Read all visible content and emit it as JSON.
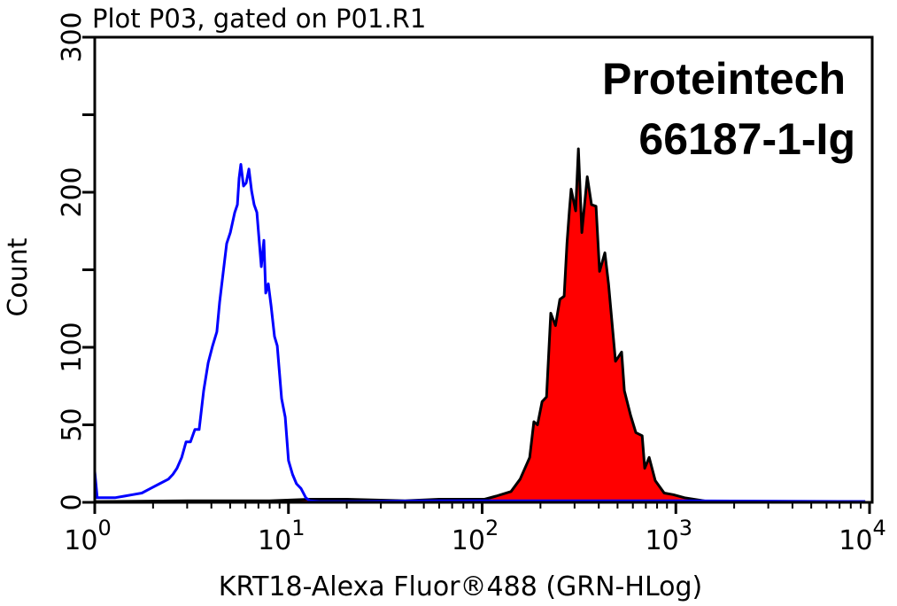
{
  "chart_data": {
    "type": "area",
    "title": "Plot P03, gated on P01.R1",
    "xlabel": "KRT18-Alexa Fluor®488 (GRN-HLog)",
    "ylabel": "Count",
    "x_scale": "log",
    "xlim": [
      1,
      10000
    ],
    "ylim": [
      0,
      300
    ],
    "x_ticks": [
      1,
      10,
      100,
      1000,
      10000
    ],
    "x_tick_labels": [
      {
        "base": "10",
        "exp": "0"
      },
      {
        "base": "10",
        "exp": "1"
      },
      {
        "base": "10",
        "exp": "2"
      },
      {
        "base": "10",
        "exp": "3"
      },
      {
        "base": "10",
        "exp": "4"
      }
    ],
    "y_ticks": [
      0,
      50,
      100,
      150,
      200,
      250,
      300
    ],
    "y_tick_labels": [
      "0",
      "50",
      "100",
      "",
      "200",
      "",
      "300"
    ],
    "grid": false,
    "annotations": [
      "Proteintech",
      "66187-1-Ig"
    ],
    "series": [
      {
        "style": "outline",
        "color": "#0000ff",
        "x": [
          1.0,
          1.03,
          1.27,
          1.42,
          1.57,
          1.75,
          1.94,
          2.16,
          2.4,
          2.53,
          2.66,
          2.81,
          2.96,
          3.12,
          3.29,
          3.46,
          3.65,
          3.85,
          4.06,
          4.27,
          4.41,
          4.61,
          4.8,
          5.01,
          5.28,
          5.45,
          5.56,
          5.68,
          5.86,
          6.05,
          6.25,
          6.45,
          6.65,
          6.87,
          7.24,
          7.47,
          7.63,
          7.87,
          8.13,
          8.47,
          8.75,
          9.22,
          9.62,
          10.0,
          10.5,
          11.0,
          11.6,
          12.3,
          12.9,
          14.4,
          21.9,
          50,
          200,
          1000,
          9500
        ],
        "y": [
          20,
          3,
          3,
          4,
          5,
          6,
          9,
          12,
          15,
          18,
          22,
          29,
          39,
          39,
          47,
          47,
          72,
          90,
          101,
          110,
          129,
          149,
          167,
          174,
          187,
          192,
          209,
          218,
          204,
          206,
          215,
          201,
          192,
          187,
          152,
          169,
          135,
          141,
          127,
          107,
          101,
          67,
          55,
          27,
          18,
          12,
          9,
          3,
          1,
          0.5,
          0.5,
          1,
          1,
          1,
          0.5
        ]
      },
      {
        "style": "filled",
        "color": "#ff0000",
        "edge_color": "#000000",
        "x": [
          1.0,
          3,
          8,
          13,
          20,
          40,
          60,
          90,
          103,
          118,
          141,
          157,
          176,
          185,
          193,
          204,
          215,
          226,
          239,
          252,
          265,
          274,
          282,
          288,
          304,
          314,
          327,
          349,
          367,
          387,
          404,
          430,
          449,
          488,
          525,
          542,
          584,
          622,
          670,
          691,
          728,
          783,
          871,
          968,
          1109,
          1475,
          3000,
          9500
        ],
        "y": [
          0.5,
          1,
          1,
          2,
          2,
          1,
          2,
          2,
          2,
          4,
          7,
          15,
          29,
          52,
          50,
          65,
          68,
          122,
          114,
          131,
          133,
          167,
          188,
          202,
          188,
          228,
          174,
          210,
          192,
          191,
          149,
          161,
          141,
          91,
          97,
          72,
          56,
          45,
          43,
          22,
          29,
          14,
          6,
          5,
          3,
          0.5,
          0.5,
          0.5
        ]
      }
    ]
  }
}
